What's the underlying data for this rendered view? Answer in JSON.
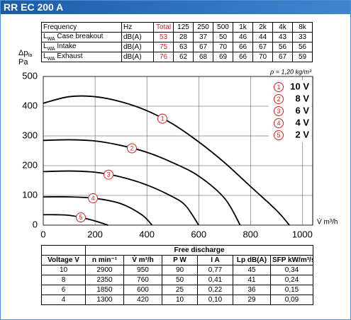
{
  "header": {
    "title": "RR EC 200 A"
  },
  "sound_table": {
    "header": {
      "label": "Frequency",
      "unit": "Hz",
      "total": "Total",
      "bands": [
        "125",
        "250",
        "500",
        "1k",
        "2k",
        "4k",
        "8k"
      ]
    },
    "rows": [
      {
        "symbol": "L",
        "sub": "WA",
        "name": "Case breakout",
        "unit": "dB(A)",
        "total": "53",
        "values": [
          "28",
          "37",
          "50",
          "46",
          "44",
          "43",
          "33"
        ]
      },
      {
        "symbol": "L",
        "sub": "WA",
        "name": "Intake",
        "unit": "dB(A)",
        "total": "75",
        "values": [
          "63",
          "67",
          "70",
          "66",
          "67",
          "56",
          "56"
        ]
      },
      {
        "symbol": "L",
        "sub": "WA",
        "name": "Exhaust",
        "unit": "dB(A)",
        "total": "76",
        "values": [
          "62",
          "68",
          "69",
          "66",
          "70",
          "67",
          "59"
        ]
      }
    ]
  },
  "chart_data": {
    "type": "line",
    "y_label": {
      "symbol": "Δp",
      "sub": "fa",
      "unit": "Pa"
    },
    "x_label": "V̇ m³/h",
    "note": "ρ = 1,20 kg/m³",
    "xlim": [
      0,
      1040
    ],
    "ylim": [
      0,
      500
    ],
    "xticks": [
      0,
      200,
      400,
      600,
      800,
      1000
    ],
    "yticks": [
      0,
      100,
      200,
      300,
      400,
      500
    ],
    "grid": true,
    "legend": "top-right",
    "marker_color": "#d81e1e",
    "series": [
      {
        "name": "10 V",
        "marker": "1",
        "color": "#000000",
        "x": [
          0,
          100,
          200,
          300,
          400,
          500,
          600,
          700,
          800,
          900,
          950
        ],
        "values": [
          410,
          432,
          432,
          415,
          385,
          340,
          280,
          210,
          130,
          50,
          0
        ]
      },
      {
        "name": "8 V",
        "marker": "2",
        "color": "#000000",
        "x": [
          0,
          100,
          200,
          300,
          400,
          500,
          600,
          700,
          760
        ],
        "values": [
          285,
          287,
          283,
          268,
          245,
          210,
          165,
          90,
          0
        ]
      },
      {
        "name": "6 V",
        "marker": "3",
        "color": "#000000",
        "x": [
          0,
          100,
          200,
          300,
          400,
          500,
          550,
          600
        ],
        "values": [
          180,
          182,
          178,
          162,
          135,
          95,
          65,
          0
        ]
      },
      {
        "name": "4 V",
        "marker": "4",
        "color": "#000000",
        "x": [
          0,
          100,
          200,
          300,
          380,
          420
        ],
        "values": [
          95,
          95,
          90,
          72,
          35,
          0
        ]
      },
      {
        "name": "2 V",
        "marker": "5",
        "color": "#000000",
        "x": [
          0,
          50,
          100,
          150,
          200,
          250
        ],
        "values": [
          35,
          35,
          33,
          25,
          14,
          0
        ]
      }
    ]
  },
  "performance_table": {
    "group": "Free discharge",
    "columns": [
      "Voltage V",
      "n min⁻¹",
      "V̇ m³/h",
      "P W",
      "I A",
      "Lp dB(A)",
      "SFP kW/m³/s"
    ],
    "rows": [
      [
        "10",
        "2900",
        "950",
        "90",
        "0,77",
        "45",
        "0,34"
      ],
      [
        "8",
        "2350",
        "760",
        "50",
        "0,41",
        "41",
        "0,24"
      ],
      [
        "6",
        "1850",
        "600",
        "25",
        "0,22",
        "36",
        "0,15"
      ],
      [
        "4",
        "1300",
        "420",
        "10",
        "0,10",
        "29",
        "0,09"
      ]
    ]
  }
}
